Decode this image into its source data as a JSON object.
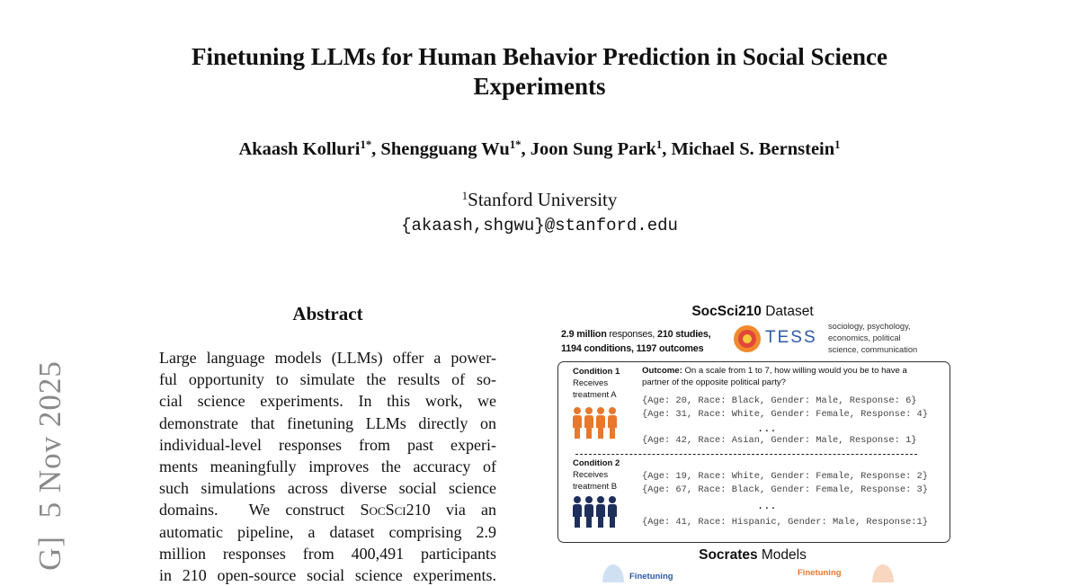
{
  "header": {
    "title_lines": [
      "Finetuning LLMs for Human Behavior Prediction in Social Science",
      "Experiments"
    ],
    "authors": [
      {
        "name": "Akaash Kolluri",
        "mark": "1*",
        "separator": ","
      },
      {
        "name": "Shengguang Wu",
        "mark": "1*",
        "separator": ","
      },
      {
        "name": "Joon Sung Park",
        "mark": "1",
        "separator": ","
      },
      {
        "name": "Michael S. Bernstein",
        "mark": "1"
      }
    ],
    "affiliation": {
      "mark": "1",
      "name": "Stanford University"
    },
    "email": "{akaash,shgwu}@stanford.edu"
  },
  "arxiv_stamp": "G]  5 Nov 2025",
  "abstract": {
    "heading": "Abstract",
    "lines": [
      "Large language models (LLMs) offer a power-",
      "ful opportunity to simulate the results of so-",
      "cial science experiments.  In this work, we",
      "demonstrate that finetuning LLMs directly on",
      "individual-level responses from past experi-",
      "ments meaningfully improves the accuracy of",
      "such simulations across diverse social science",
      {
        "before": "domains.  We construct ",
        "smallcaps": "SocSci210",
        "after": " via an"
      },
      "automatic pipeline, a dataset comprising 2.9",
      "million responses from 400,491 participants",
      "in 210 open-source social science experiments."
    ]
  },
  "figure": {
    "dataset_title": {
      "bold": "SocSci210",
      "rest": " Dataset"
    },
    "stats": [
      [
        "2.9 million",
        " responses, ",
        "210 studies,"
      ],
      [
        "1194 conditions, 1197 outcomes"
      ]
    ],
    "logo": "TESS",
    "domains": [
      "sociology, psychology,",
      "economics, political",
      "science, communication"
    ],
    "outcome": {
      "label": "Outcome:",
      "lines": [
        " On a scale from 1 to 7, how willing would you be to have a",
        "partner of the opposite political party?"
      ]
    },
    "conditions": [
      {
        "lines": [
          "Condition 1",
          "Receives",
          "treatment A"
        ],
        "responses": [
          "{Age: 20, Race: Black, Gender: Male, Response: 6}",
          "{Age: 31, Race: White, Gender: Female, Response: 4}",
          "...",
          "{Age: 42, Race: Asian, Gender: Male, Response: 1}"
        ]
      },
      {
        "lines": [
          "Condition 2",
          "Receives",
          "treatment B"
        ],
        "responses": [
          "{Age: 19, Race: White, Gender: Female, Response: 2}",
          "{Age: 67, Race: Black, Gender: Female, Response: 3}",
          "...",
          "{Age: 41, Race: Hispanic, Gender: Male, Response:1}"
        ]
      }
    ],
    "models_title": {
      "bold": "Socrates",
      "rest": " Models"
    },
    "finetuning_labels": [
      "Finetuning",
      "Finetuning"
    ]
  }
}
